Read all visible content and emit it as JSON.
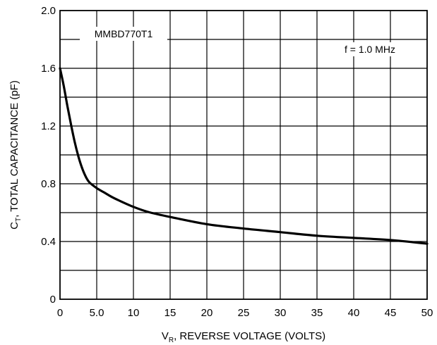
{
  "chart_data": {
    "type": "line",
    "title": "",
    "xlabel": {
      "main": "V",
      "sub": "R",
      "rest": ", REVERSE VOLTAGE (VOLTS)"
    },
    "ylabel": {
      "main": "C",
      "sub": "T",
      "rest": ", TOTAL CAPACITANCE (pF)"
    },
    "xlim": [
      0,
      50
    ],
    "ylim": [
      0,
      2.0
    ],
    "x_ticks": [
      0,
      5,
      10,
      15,
      20,
      25,
      30,
      35,
      40,
      45,
      50
    ],
    "x_tick_labels": [
      "0",
      "5.0",
      "10",
      "15",
      "20",
      "25",
      "30",
      "35",
      "40",
      "45",
      "50"
    ],
    "y_ticks": [
      0,
      0.4,
      0.8,
      1.2,
      1.6,
      2.0
    ],
    "y_tick_labels": [
      "0",
      "0.4",
      "0.8",
      "1.2",
      "1.6",
      "2.0"
    ],
    "grid": true,
    "grid_x_step": 5,
    "grid_y_step": 0.2,
    "line_color": "#000000",
    "annotations": {
      "device": "MMBD770T1",
      "frequency": "f = 1.0 MHz"
    },
    "series": [
      {
        "x": [
          0,
          0.5,
          1,
          1.5,
          2,
          2.5,
          3,
          3.5,
          4,
          5,
          6,
          7,
          8,
          10,
          12,
          15,
          20,
          25,
          30,
          35,
          40,
          45,
          50
        ],
        "values": [
          1.6,
          1.48,
          1.34,
          1.21,
          1.09,
          0.99,
          0.91,
          0.85,
          0.81,
          0.77,
          0.74,
          0.71,
          0.685,
          0.64,
          0.605,
          0.57,
          0.52,
          0.49,
          0.465,
          0.44,
          0.425,
          0.41,
          0.385
        ]
      }
    ]
  }
}
